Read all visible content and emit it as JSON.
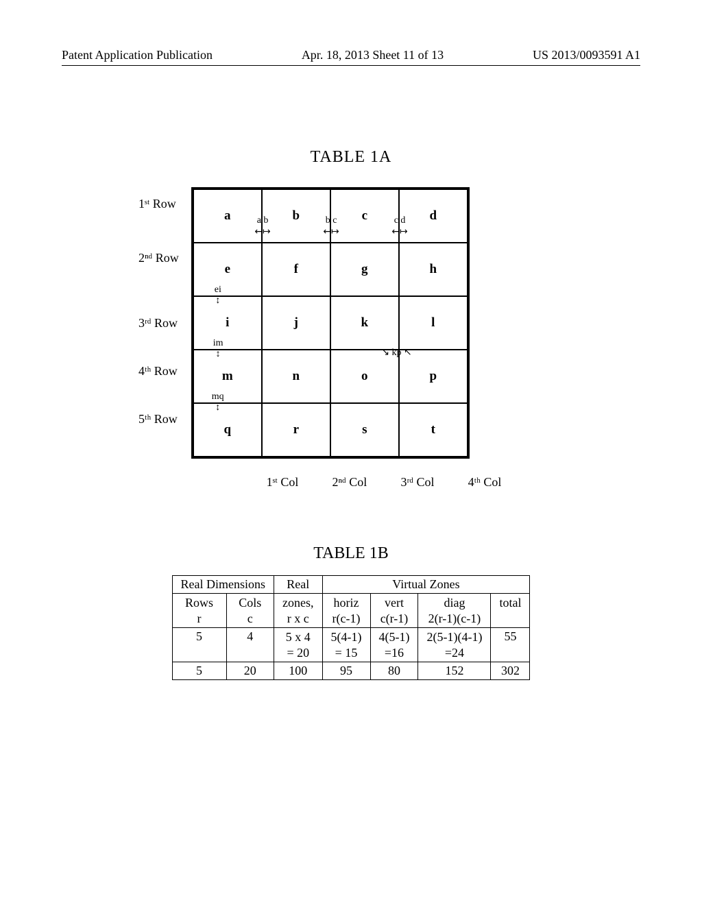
{
  "header": {
    "left": "Patent Application Publication",
    "mid": "Apr. 18, 2013  Sheet 11 of 13",
    "right": "US 2013/0093591 A1"
  },
  "table1a": {
    "title": "TABLE 1A",
    "row_labels": [
      "1ˢᵗ  Row",
      "2ⁿᵈ  Row",
      "3ʳᵈ Row",
      "4ᵗʰ Row",
      "5ᵗʰ Row"
    ],
    "col_labels": [
      "1ˢᵗ Col",
      "2ⁿᵈ Col",
      "3ʳᵈ Col",
      "4ᵗʰ Col"
    ],
    "cells": [
      [
        "a",
        "b",
        "c",
        "d"
      ],
      [
        "e",
        "f",
        "g",
        "h"
      ],
      [
        "i",
        "j",
        "k",
        "l"
      ],
      [
        "m",
        "n",
        "o",
        "p"
      ],
      [
        "q",
        "r",
        "s",
        "t"
      ]
    ],
    "edge_annotations": {
      "r1_ab": "a b",
      "r1_bc": "b c",
      "r1_cd": "c d",
      "ei": "ei",
      "im": "im",
      "mq": "mq",
      "kp": "kp"
    }
  },
  "table1b": {
    "title": "TABLE 1B",
    "group_headers": [
      "Real Dimensions",
      "Real",
      "Virtual Zones"
    ],
    "sub_headers": {
      "rows": "Rows\nr",
      "cols": "Cols\nc",
      "zones": "zones,\nr x c",
      "horiz": "horiz\nr(c-1)",
      "vert": "vert\nc(r-1)",
      "diag": "diag\n2(r-1)(c-1)",
      "total": "total"
    },
    "rows": [
      {
        "r": "5",
        "c": "4",
        "zones": "5 x 4\n= 20",
        "horiz": "5(4-1)\n= 15",
        "vert": "4(5-1)\n=16",
        "diag": "2(5-1)(4-1)\n=24",
        "total": "55"
      },
      {
        "r": "5",
        "c": "20",
        "zones": "100",
        "horiz": "95",
        "vert": "80",
        "diag": "152",
        "total": "302"
      }
    ]
  }
}
